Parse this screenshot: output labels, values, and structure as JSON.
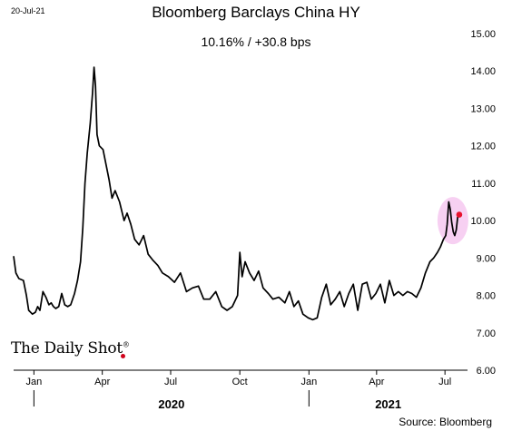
{
  "header": {
    "date_stamp": "20-Jul-21",
    "title": "Bloomberg Barclays China HY",
    "subtitle": "10.16%  /  +30.8 bps"
  },
  "branding": {
    "logo_text": "The Daily Shot",
    "logo_mark": "®"
  },
  "footer": {
    "source": "Source: Bloomberg"
  },
  "colors": {
    "line": "#000000",
    "highlight_fill": "#f6c8f0",
    "highlight_point": "#e8112d"
  },
  "chart_data": {
    "type": "line",
    "title": "Bloomberg Barclays China HY",
    "subtitle": "10.16%  /  +30.8 bps",
    "xlabel": "",
    "ylabel": "",
    "y_axis_side": "right",
    "ylim": [
      6.0,
      15.0
    ],
    "yticks": [
      "6.00",
      "7.00",
      "8.00",
      "9.00",
      "10.00",
      "11.00",
      "12.00",
      "13.00",
      "14.00",
      "15.00"
    ],
    "xlim": [
      "2019-12-05",
      "2021-07-31"
    ],
    "xticks": [
      {
        "date": "2020-01-01",
        "label": "Jan"
      },
      {
        "date": "2020-04-01",
        "label": "Apr"
      },
      {
        "date": "2020-07-01",
        "label": "Jul"
      },
      {
        "date": "2020-10-01",
        "label": "Oct"
      },
      {
        "date": "2021-01-01",
        "label": "Jan"
      },
      {
        "date": "2021-04-01",
        "label": "Apr"
      },
      {
        "date": "2021-07-01",
        "label": "Jul"
      }
    ],
    "year_labels": [
      {
        "label": "2020",
        "start": "2020-01-01",
        "end": "2021-01-01"
      },
      {
        "label": "2021",
        "start": "2021-01-01",
        "end": "2021-07-31"
      }
    ],
    "grid": false,
    "legend": "none",
    "highlight": {
      "date": "2021-07-20",
      "value": 10.16
    },
    "series": [
      {
        "x": [
          "2019-12-05",
          "2019-12-08",
          "2019-12-12",
          "2019-12-18",
          "2019-12-22",
          "2019-12-25",
          "2019-12-30",
          "2020-01-03",
          "2020-01-06",
          "2020-01-09",
          "2020-01-13",
          "2020-01-17",
          "2020-01-21",
          "2020-01-24",
          "2020-01-27",
          "2020-01-30",
          "2020-02-03",
          "2020-02-07",
          "2020-02-11",
          "2020-02-15",
          "2020-02-19",
          "2020-02-24",
          "2020-02-28",
          "2020-03-03",
          "2020-03-06",
          "2020-03-09",
          "2020-03-12",
          "2020-03-16",
          "2020-03-19",
          "2020-03-21",
          "2020-03-23",
          "2020-03-25",
          "2020-03-28",
          "2020-04-02",
          "2020-04-06",
          "2020-04-10",
          "2020-04-14",
          "2020-04-18",
          "2020-04-24",
          "2020-04-30",
          "2020-05-04",
          "2020-05-09",
          "2020-05-14",
          "2020-05-20",
          "2020-05-26",
          "2020-06-01",
          "2020-06-07",
          "2020-06-14",
          "2020-06-20",
          "2020-06-28",
          "2020-07-06",
          "2020-07-14",
          "2020-07-22",
          "2020-07-30",
          "2020-08-07",
          "2020-08-14",
          "2020-08-22",
          "2020-08-30",
          "2020-09-07",
          "2020-09-14",
          "2020-09-21",
          "2020-09-28",
          "2020-10-01",
          "2020-10-04",
          "2020-10-08",
          "2020-10-14",
          "2020-10-20",
          "2020-10-26",
          "2020-11-01",
          "2020-11-08",
          "2020-11-14",
          "2020-11-22",
          "2020-11-30",
          "2020-12-06",
          "2020-12-12",
          "2020-12-18",
          "2020-12-24",
          "2020-12-31",
          "2021-01-06",
          "2021-01-12",
          "2021-01-18",
          "2021-01-24",
          "2021-01-30",
          "2021-02-05",
          "2021-02-11",
          "2021-02-17",
          "2021-02-23",
          "2021-03-01",
          "2021-03-07",
          "2021-03-13",
          "2021-03-19",
          "2021-03-25",
          "2021-03-31",
          "2021-04-06",
          "2021-04-12",
          "2021-04-18",
          "2021-04-24",
          "2021-04-30",
          "2021-05-06",
          "2021-05-12",
          "2021-05-18",
          "2021-05-24",
          "2021-05-30",
          "2021-06-05",
          "2021-06-11",
          "2021-06-16",
          "2021-06-21",
          "2021-06-25",
          "2021-06-29",
          "2021-07-02",
          "2021-07-04",
          "2021-07-06",
          "2021-07-08",
          "2021-07-10",
          "2021-07-12",
          "2021-07-14",
          "2021-07-16",
          "2021-07-18",
          "2021-07-20"
        ],
        "values": [
          9.05,
          8.6,
          8.45,
          8.4,
          8.0,
          7.6,
          7.5,
          7.55,
          7.7,
          7.6,
          8.1,
          7.95,
          7.75,
          7.8,
          7.7,
          7.65,
          7.7,
          8.05,
          7.75,
          7.7,
          7.75,
          8.05,
          8.4,
          8.9,
          9.8,
          11.0,
          11.8,
          12.6,
          13.4,
          14.1,
          13.6,
          12.3,
          12.0,
          11.9,
          11.5,
          11.1,
          10.6,
          10.8,
          10.5,
          10.0,
          10.2,
          9.9,
          9.5,
          9.35,
          9.6,
          9.1,
          8.95,
          8.8,
          8.6,
          8.5,
          8.35,
          8.6,
          8.1,
          8.2,
          8.25,
          7.9,
          7.9,
          8.1,
          7.7,
          7.6,
          7.7,
          8.0,
          9.15,
          8.5,
          8.9,
          8.6,
          8.4,
          8.65,
          8.2,
          8.05,
          7.9,
          7.95,
          7.8,
          8.1,
          7.7,
          7.85,
          7.5,
          7.4,
          7.35,
          7.4,
          7.95,
          8.3,
          7.75,
          7.9,
          8.1,
          7.7,
          8.05,
          8.3,
          7.6,
          8.3,
          8.35,
          7.9,
          8.05,
          8.3,
          7.8,
          8.4,
          8.0,
          8.1,
          8.0,
          8.1,
          8.05,
          7.95,
          8.2,
          8.6,
          8.9,
          9.0,
          9.15,
          9.3,
          9.5,
          9.6,
          9.9,
          10.5,
          10.3,
          9.95,
          9.7,
          9.6,
          9.75,
          10.1,
          10.16
        ]
      }
    ]
  }
}
